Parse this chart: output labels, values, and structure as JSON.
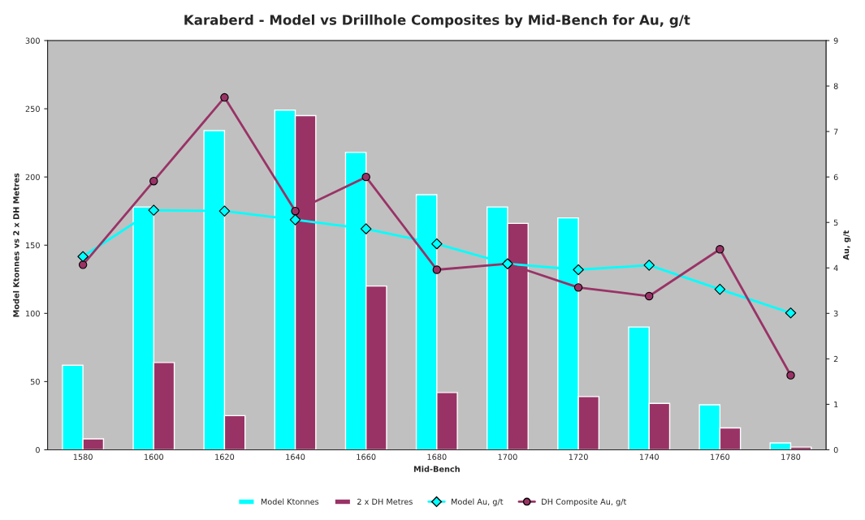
{
  "chart_data": {
    "type": "bar",
    "title": "Karaberd - Model vs Drillhole Composites by Mid-Bench for Au, g/t",
    "xlabel": "Mid-Bench",
    "ylabel": "Model Ktonnes vs 2 x DH Metres",
    "y2label": "Au, g/t",
    "categories": [
      "1580",
      "1600",
      "1620",
      "1640",
      "1660",
      "1680",
      "1700",
      "1720",
      "1740",
      "1760",
      "1780"
    ],
    "series": [
      {
        "name": "Model Ktonnes",
        "color": "#00ffff",
        "values": [
          62,
          178,
          234,
          249,
          218,
          187,
          178,
          170,
          90,
          33,
          5
        ]
      },
      {
        "name": "2 x DH Metres",
        "color": "#993366",
        "values": [
          8,
          64,
          25,
          245,
          120,
          42,
          166,
          39,
          34,
          16,
          2
        ]
      },
      {
        "name": "Model Au, g/t",
        "type": "line",
        "axis": "y2",
        "color": "#00ffff",
        "marker": "diamond",
        "values": [
          4.25,
          5.27,
          5.25,
          5.06,
          4.86,
          4.53,
          4.09,
          3.96,
          4.06,
          3.53,
          3.01
        ]
      },
      {
        "name": "DH Composite Au, g/t",
        "type": "line",
        "axis": "y2",
        "color": "#993366",
        "marker": "circle",
        "values": [
          4.07,
          5.91,
          7.75,
          5.25,
          6.0,
          3.96,
          4.09,
          3.57,
          3.38,
          4.41,
          1.64
        ]
      }
    ],
    "ylim": [
      0,
      300
    ],
    "yticks": [
      0,
      50,
      100,
      150,
      200,
      250,
      300
    ],
    "y2lim": [
      0,
      9
    ],
    "y2ticks": [
      0,
      1,
      2,
      3,
      4,
      5,
      6,
      7,
      8,
      9
    ],
    "grid": false,
    "legend": "bottom"
  }
}
